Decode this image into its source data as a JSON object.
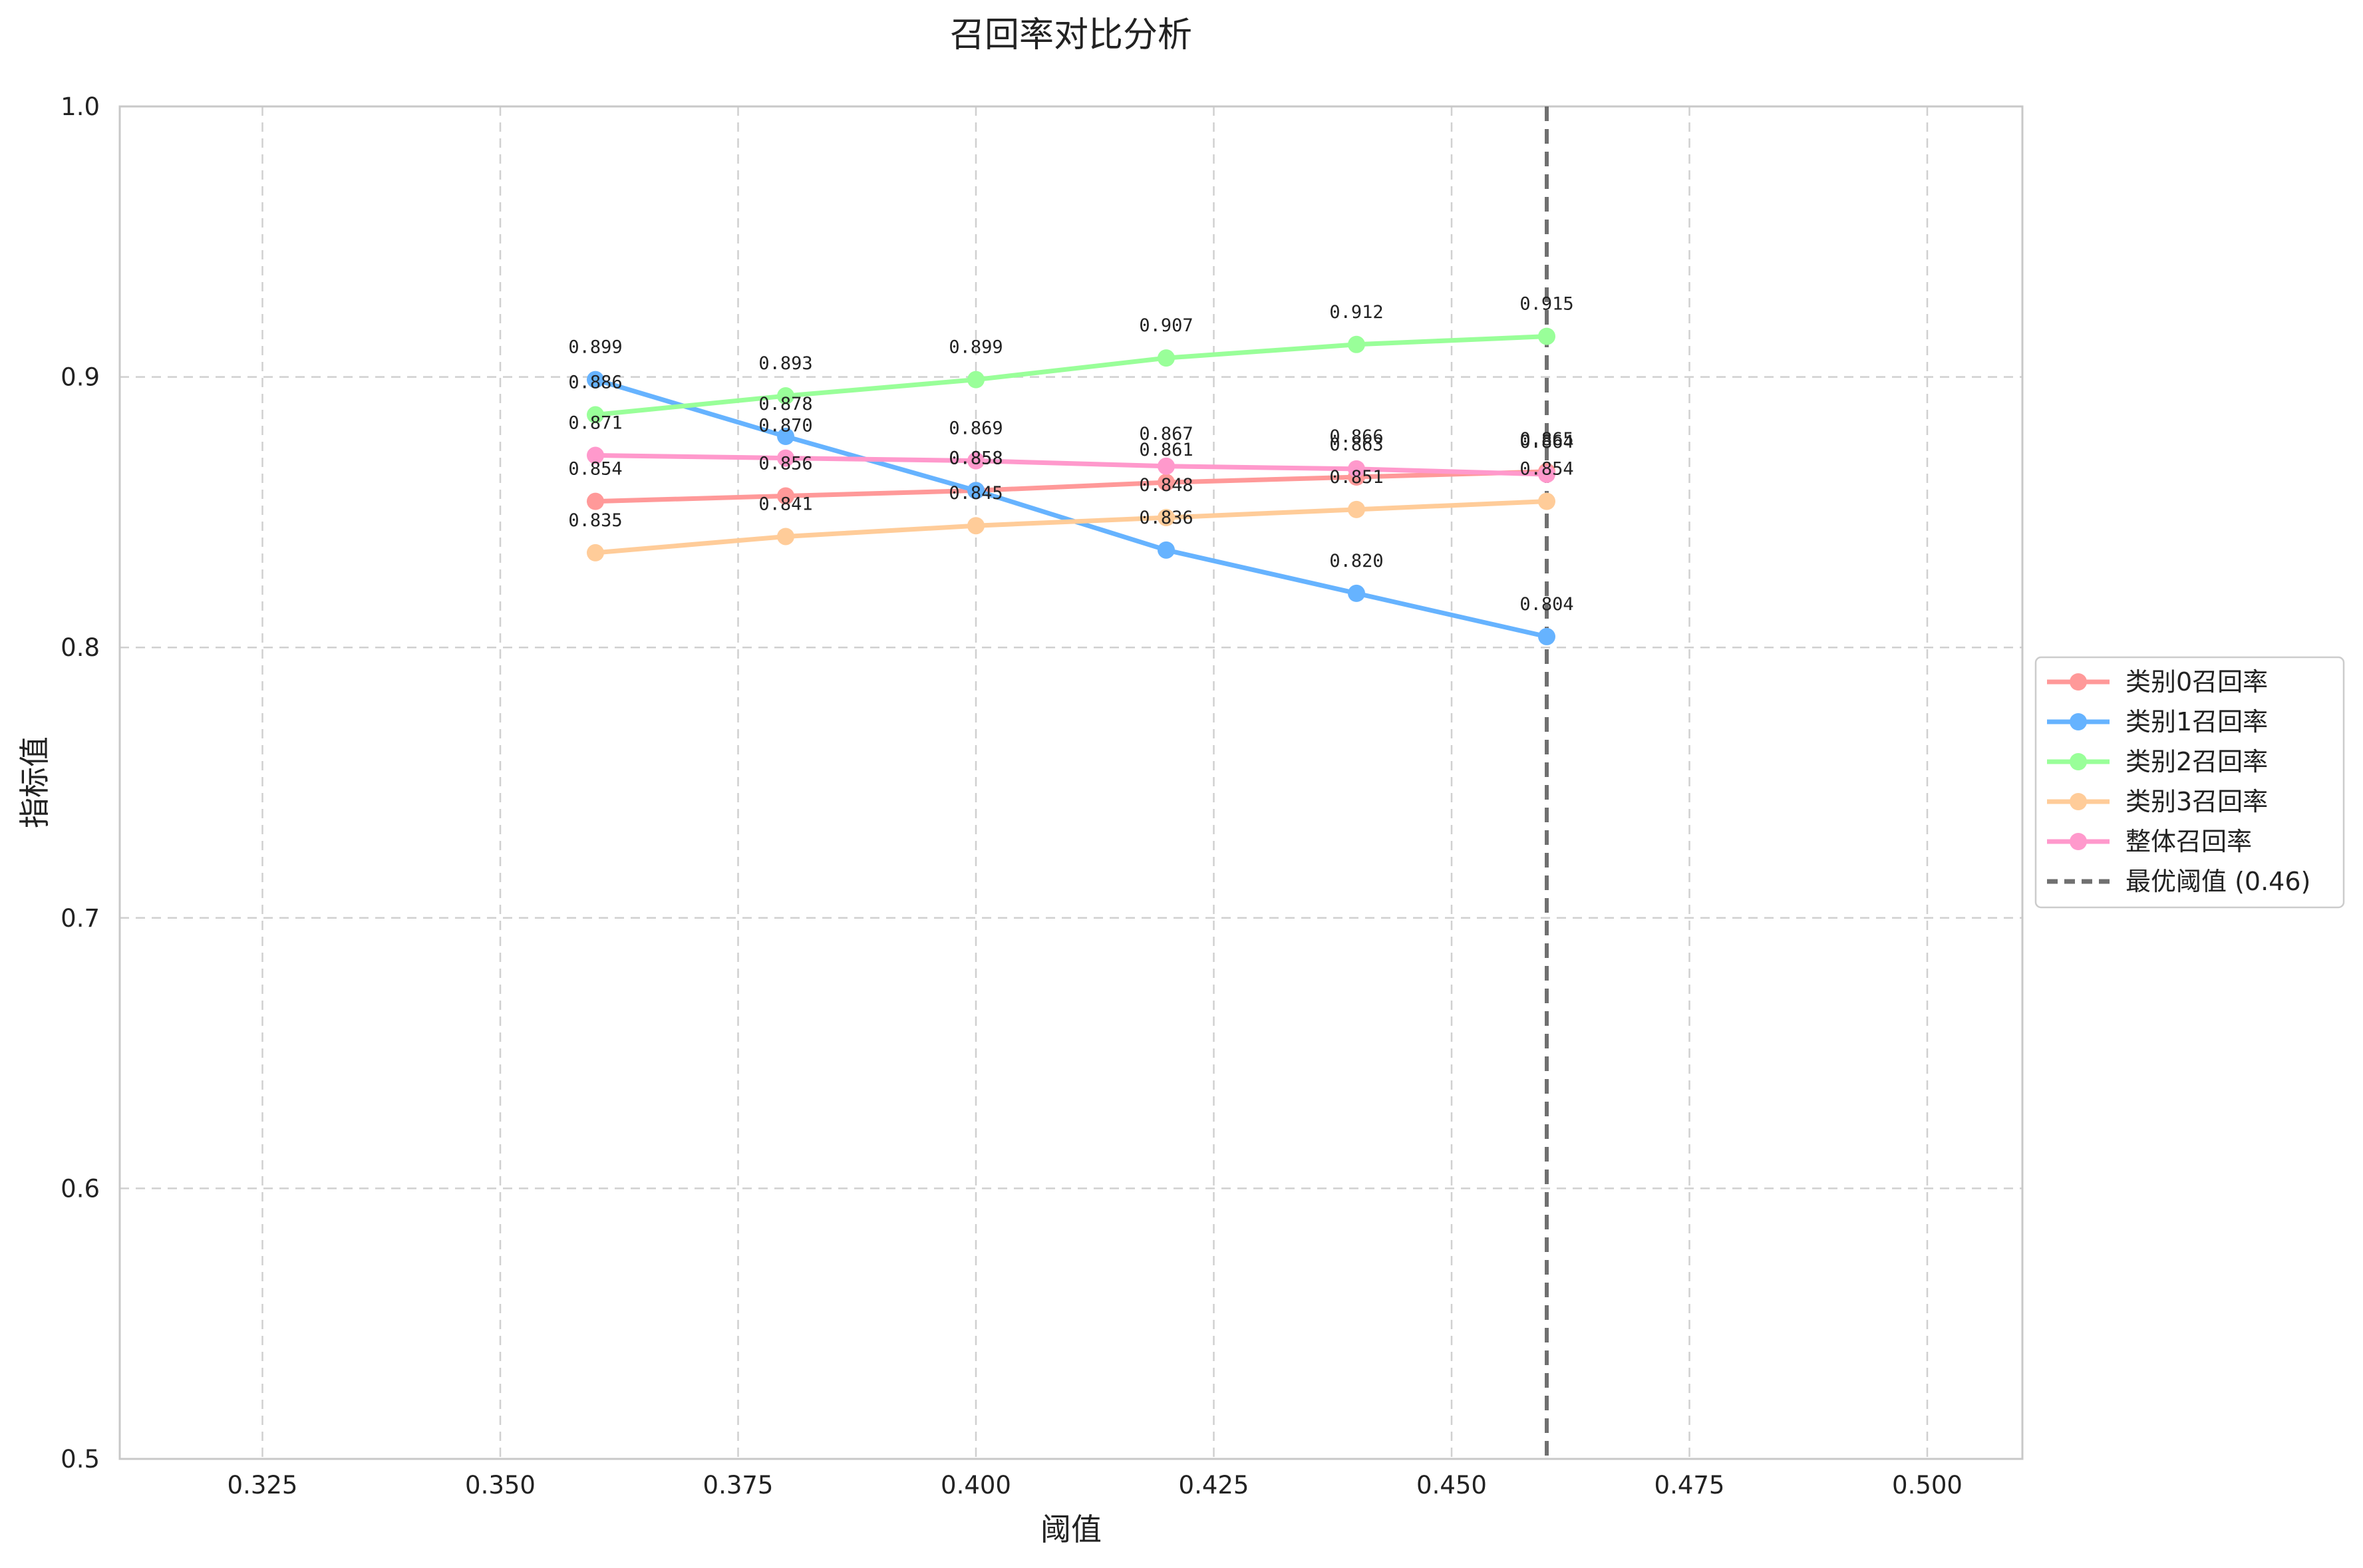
{
  "chart_data": {
    "type": "line",
    "title": "召回率对比分析",
    "xlabel": "阈值",
    "ylabel": "指标值",
    "xlim": [
      0.31,
      0.51
    ],
    "ylim": [
      0.5,
      1.0
    ],
    "x_ticks": [
      0.325,
      0.35,
      0.375,
      0.4,
      0.425,
      0.45,
      0.475,
      0.5
    ],
    "x_tick_labels": [
      "0.325",
      "0.350",
      "0.375",
      "0.400",
      "0.425",
      "0.450",
      "0.475",
      "0.500"
    ],
    "y_ticks": [
      0.5,
      0.6,
      0.7,
      0.8,
      0.9,
      1.0
    ],
    "y_tick_labels": [
      "0.5",
      "0.6",
      "0.7",
      "0.8",
      "0.9",
      "1.0"
    ],
    "grid": true,
    "legend_position": "right-outside",
    "x": [
      0.36,
      0.38,
      0.4,
      0.42,
      0.44,
      0.46
    ],
    "series": [
      {
        "name": "类别0召回率",
        "color": "#ff9999",
        "values": [
          0.854,
          0.856,
          0.858,
          0.861,
          0.863,
          0.865
        ],
        "labels": [
          "0.854",
          "0.856",
          "0.858",
          "0.861",
          "0.863",
          "0.865"
        ]
      },
      {
        "name": "类别1召回率",
        "color": "#66b3ff",
        "values": [
          0.899,
          0.878,
          0.858,
          0.836,
          0.82,
          0.804
        ],
        "labels": [
          "0.899",
          "0.878",
          "0.858",
          "0.836",
          "0.820",
          "0.804"
        ]
      },
      {
        "name": "类别2召回率",
        "color": "#99ff99",
        "values": [
          0.886,
          0.893,
          0.899,
          0.907,
          0.912,
          0.915
        ],
        "labels": [
          "0.886",
          "0.893",
          "0.899",
          "0.907",
          "0.912",
          "0.915"
        ]
      },
      {
        "name": "类别3召回率",
        "color": "#ffcc99",
        "values": [
          0.835,
          0.841,
          0.845,
          0.848,
          0.851,
          0.854
        ],
        "labels": [
          "0.835",
          "0.841",
          "0.845",
          "0.848",
          "0.851",
          "0.854"
        ]
      },
      {
        "name": "整体召回率",
        "color": "#ff99cc",
        "values": [
          0.871,
          0.87,
          0.869,
          0.867,
          0.866,
          0.864
        ],
        "labels": [
          "0.871",
          "0.870",
          "0.869",
          "0.867",
          "0.866",
          "0.864"
        ]
      }
    ],
    "reference_line": {
      "name": "最优阈值 (0.46)",
      "x": 0.46,
      "color": "#707070",
      "style": "dashed"
    }
  }
}
